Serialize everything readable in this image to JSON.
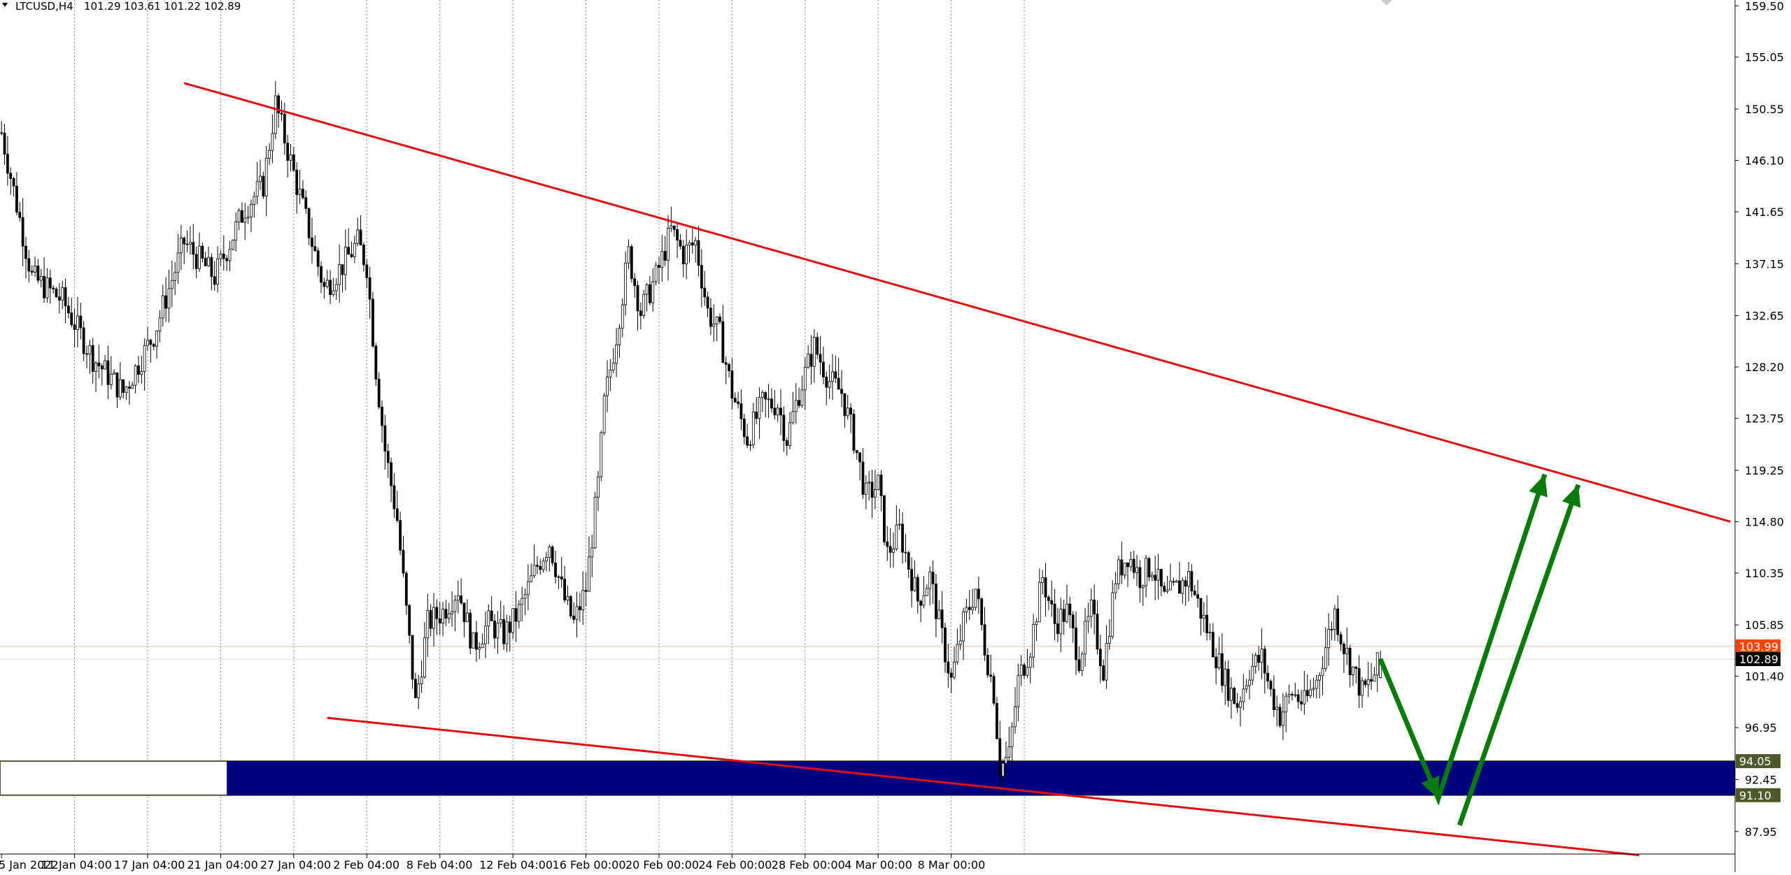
{
  "header": {
    "symbol_label": "LTCUSD,H4",
    "ohlc_label": "101.29 103.61 101.22 102.89"
  },
  "colors": {
    "background": "#ffffff",
    "grid": "#888888",
    "candle_body_up": "#ffffff",
    "candle_body_down": "#000000",
    "candle_outline": "#000000",
    "trendline": "#e01010",
    "zone_fill": "#000080",
    "zone_border": "#555533",
    "arrow": "#0a7a0a",
    "ask_line": "#e8c0a0",
    "ask_tag": "#ff4400",
    "bid_tag": "#000000",
    "zone_tag": "#4f5a2a"
  },
  "chart_data": {
    "type": "candlestick",
    "title": "LTCUSD,H4",
    "ylim": [
      86,
      160
    ],
    "y_ticks": [
      "159.50",
      "155.05",
      "150.55",
      "146.10",
      "141.65",
      "137.15",
      "132.65",
      "128.20",
      "123.75",
      "119.25",
      "114.80",
      "110.35",
      "105.85",
      "101.40",
      "96.95",
      "92.45",
      "87.95"
    ],
    "x_ticks": [
      "5 Jan 2022",
      "11 Jan 04:00",
      "17 Jan 04:00",
      "21 Jan 04:00",
      "27 Jan 04:00",
      "2 Feb 04:00",
      "8 Feb 04:00",
      "12 Feb 04:00",
      "16 Feb 00:00",
      "20 Feb 00:00",
      "24 Feb 00:00",
      "28 Feb 00:00",
      "4 Mar 00:00",
      "8 Mar 00:00"
    ],
    "grid": "vertical dotted",
    "last_bar": {
      "open": 101.29,
      "high": 103.61,
      "low": 101.22,
      "close": 102.89
    },
    "price_tags": [
      {
        "name": "ask",
        "value": "103.99"
      },
      {
        "name": "bid",
        "value": "102.89"
      },
      {
        "name": "zone_top",
        "value": "94.05"
      },
      {
        "name": "zone_bottom",
        "value": "91.10"
      }
    ],
    "zone": {
      "from": 91.1,
      "to": 94.05
    },
    "price_path": [
      [
        0,
        148.5
      ],
      [
        10,
        136
      ],
      [
        20,
        134
      ],
      [
        30,
        129
      ],
      [
        40,
        126
      ],
      [
        50,
        131
      ],
      [
        60,
        139
      ],
      [
        70,
        136
      ],
      [
        80,
        142
      ],
      [
        86,
        144
      ],
      [
        90,
        151
      ],
      [
        95,
        146
      ],
      [
        100,
        141
      ],
      [
        106,
        135
      ],
      [
        112,
        137
      ],
      [
        117,
        139
      ],
      [
        120,
        137
      ],
      [
        123,
        128
      ],
      [
        126,
        121
      ],
      [
        130,
        115
      ],
      [
        133,
        107
      ],
      [
        136,
        99
      ],
      [
        140,
        106
      ],
      [
        145,
        107
      ],
      [
        150,
        109
      ],
      [
        155,
        104
      ],
      [
        160,
        106
      ],
      [
        165,
        105
      ],
      [
        170,
        107
      ],
      [
        176,
        111
      ],
      [
        180,
        113
      ],
      [
        185,
        108
      ],
      [
        188,
        106
      ],
      [
        192,
        109
      ],
      [
        196,
        118
      ],
      [
        198,
        125
      ],
      [
        202,
        131
      ],
      [
        206,
        138
      ],
      [
        210,
        133
      ],
      [
        215,
        136
      ],
      [
        220,
        140
      ],
      [
        224,
        138
      ],
      [
        228,
        139
      ],
      [
        232,
        133
      ],
      [
        236,
        131
      ],
      [
        240,
        126
      ],
      [
        245,
        122
      ],
      [
        250,
        125
      ],
      [
        255,
        125
      ],
      [
        258,
        122
      ],
      [
        262,
        126
      ],
      [
        267,
        130
      ],
      [
        272,
        127
      ],
      [
        276,
        126
      ],
      [
        280,
        122
      ],
      [
        284,
        117
      ],
      [
        288,
        118
      ],
      [
        291,
        112
      ],
      [
        295,
        114
      ],
      [
        298,
        111
      ],
      [
        301,
        108
      ],
      [
        305,
        110
      ],
      [
        308,
        106
      ],
      [
        312,
        101
      ],
      [
        316,
        106
      ],
      [
        320,
        109
      ],
      [
        323,
        104
      ],
      [
        326,
        100
      ],
      [
        328,
        93.5
      ],
      [
        331,
        94.5
      ],
      [
        334,
        101
      ],
      [
        338,
        104
      ],
      [
        342,
        110
      ],
      [
        346,
        106
      ],
      [
        350,
        107
      ],
      [
        354,
        103
      ],
      [
        358,
        107
      ],
      [
        362,
        102
      ],
      [
        366,
        110
      ],
      [
        370,
        112
      ],
      [
        374,
        110
      ],
      [
        378,
        111
      ],
      [
        382,
        108
      ],
      [
        386,
        109
      ],
      [
        390,
        110
      ],
      [
        394,
        107
      ],
      [
        398,
        104
      ],
      [
        402,
        101
      ],
      [
        406,
        99
      ],
      [
        410,
        102
      ],
      [
        414,
        103
      ],
      [
        417,
        100
      ],
      [
        420,
        98
      ],
      [
        424,
        100
      ],
      [
        428,
        99
      ],
      [
        432,
        101
      ],
      [
        435,
        104
      ],
      [
        438,
        107
      ],
      [
        441,
        104
      ],
      [
        444,
        102
      ],
      [
        447,
        100
      ],
      [
        450,
        101
      ],
      [
        453,
        102.89
      ]
    ],
    "annotations": [
      {
        "type": "trendline",
        "name": "upper_resistance",
        "points": [
          [
            60,
            152.8
          ],
          [
            568,
            114.8
          ]
        ]
      },
      {
        "type": "trendline",
        "name": "lower_support",
        "points": [
          [
            107,
            97.8
          ],
          [
            538,
            85.9
          ]
        ]
      },
      {
        "type": "arrow_path",
        "name": "projection_path_1",
        "points": [
          [
            453,
            102.89
          ],
          [
            472,
            90.8
          ],
          [
            507,
            118.9
          ]
        ]
      },
      {
        "type": "arrow_path",
        "name": "projection_path_2",
        "points": [
          [
            479,
            88.5
          ],
          [
            518,
            118.0
          ]
        ]
      }
    ]
  }
}
